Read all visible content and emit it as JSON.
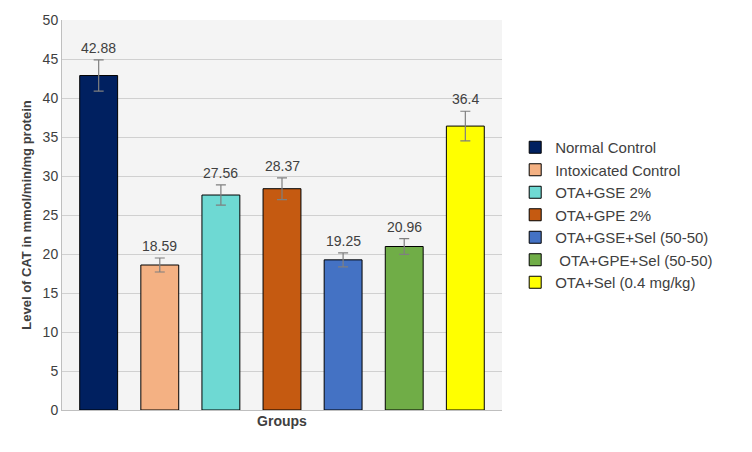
{
  "chart_data": {
    "type": "bar",
    "x_label": "Groups",
    "y_label": "Level of CAT in mmol/min/mg protein",
    "categories": [
      "Normal Control",
      "Intoxicated Control",
      "OTA+GSE 2%",
      "OTA+GPE 2%",
      "OTA+GSE+Sel (50-50)",
      " OTA+GPE+Sel (50-50)",
      "OTA+Sel (0.4 mg/kg)"
    ],
    "values": [
      42.88,
      18.59,
      27.56,
      28.37,
      19.25,
      20.96,
      36.4
    ],
    "errors": [
      2.0,
      0.9,
      1.3,
      1.4,
      0.9,
      1.0,
      1.9
    ],
    "colors": [
      "#002060",
      "#F4B183",
      "#6ED9D3",
      "#C55A11",
      "#4472C4",
      "#70AD47",
      "#FFFF00"
    ],
    "ylim": [
      0,
      50
    ],
    "yticks": [
      0,
      5,
      10,
      15,
      20,
      25,
      30,
      35,
      40,
      45,
      50
    ],
    "grid": true,
    "data_labels": true,
    "tick_labels": "y",
    "legend": "right"
  }
}
